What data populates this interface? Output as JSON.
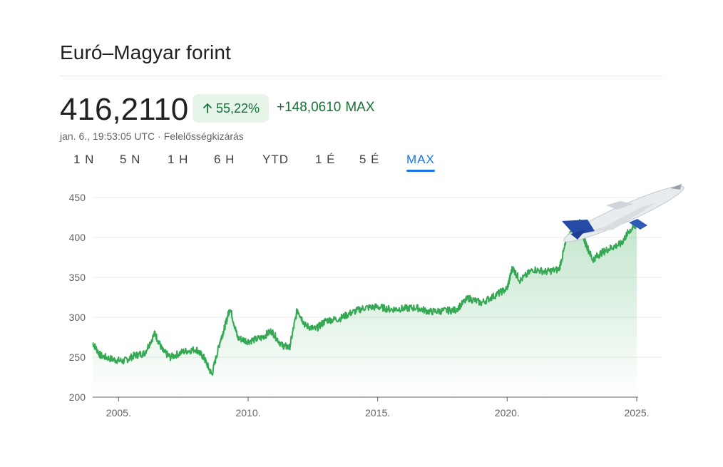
{
  "header": {
    "title": "Euró–Magyar forint",
    "price": "416,2110",
    "badge_percent": "55,22%",
    "change_value": "+148,0610",
    "change_period": "MAX",
    "timestamp": "jan. 6., 19:53:05 UTC",
    "separator": "·",
    "disclaimer": "Felelősségkizárás"
  },
  "tabs": [
    {
      "label": "1 N",
      "active": false
    },
    {
      "label": "5 N",
      "active": false
    },
    {
      "label": "1 H",
      "active": false
    },
    {
      "label": "6 H",
      "active": false
    },
    {
      "label": "YTD",
      "active": false
    },
    {
      "label": "1 É",
      "active": false
    },
    {
      "label": "5 É",
      "active": false
    },
    {
      "label": "MAX",
      "active": true
    }
  ],
  "colors": {
    "line": "#34a853",
    "fill": "#34a853",
    "grid": "#e8eaed",
    "axis": "#5f6368",
    "positive": "#137333",
    "active_tab": "#1a73e8"
  },
  "decoration": "airplane-icon",
  "chart_data": {
    "type": "area",
    "title": "",
    "xlabel": "",
    "ylabel": "",
    "ylim": [
      200,
      450
    ],
    "xlim": [
      2004.0,
      2025.0
    ],
    "grid": true,
    "y_ticks": [
      "450",
      "400",
      "350",
      "300",
      "250",
      "200"
    ],
    "x_ticks": [
      {
        "value": 2005,
        "label": "2005."
      },
      {
        "value": 2010,
        "label": "2010."
      },
      {
        "value": 2015,
        "label": "2015."
      },
      {
        "value": 2020,
        "label": "2020."
      },
      {
        "value": 2025,
        "label": "2025."
      }
    ],
    "series": [
      {
        "x": [
          2004.0,
          2004.3,
          2004.8,
          2005.2,
          2005.6,
          2006.0,
          2006.4,
          2006.7,
          2007.0,
          2007.5,
          2008.0,
          2008.3,
          2008.6,
          2008.9,
          2009.1,
          2009.3,
          2009.6,
          2010.0,
          2010.5,
          2010.9,
          2011.3,
          2011.6,
          2011.9,
          2012.2,
          2012.6,
          2013.0,
          2013.5,
          2014.0,
          2014.5,
          2015.0,
          2015.5,
          2016.0,
          2016.5,
          2017.0,
          2017.5,
          2018.0,
          2018.5,
          2019.0,
          2019.5,
          2020.0,
          2020.2,
          2020.5,
          2021.0,
          2021.5,
          2022.0,
          2022.3,
          2022.6,
          2022.8,
          2023.0,
          2023.3,
          2023.6,
          2024.0,
          2024.4,
          2024.7,
          2025.0
        ],
        "y": [
          268,
          252,
          247,
          245,
          252,
          255,
          280,
          258,
          250,
          257,
          260,
          249,
          228,
          268,
          288,
          312,
          274,
          270,
          274,
          283,
          265,
          262,
          310,
          290,
          285,
          296,
          298,
          306,
          312,
          313,
          310,
          311,
          312,
          307,
          308,
          309,
          324,
          318,
          327,
          336,
          362,
          346,
          360,
          357,
          360,
          398,
          412,
          418,
          395,
          372,
          380,
          387,
          392,
          408,
          416
        ]
      }
    ]
  }
}
